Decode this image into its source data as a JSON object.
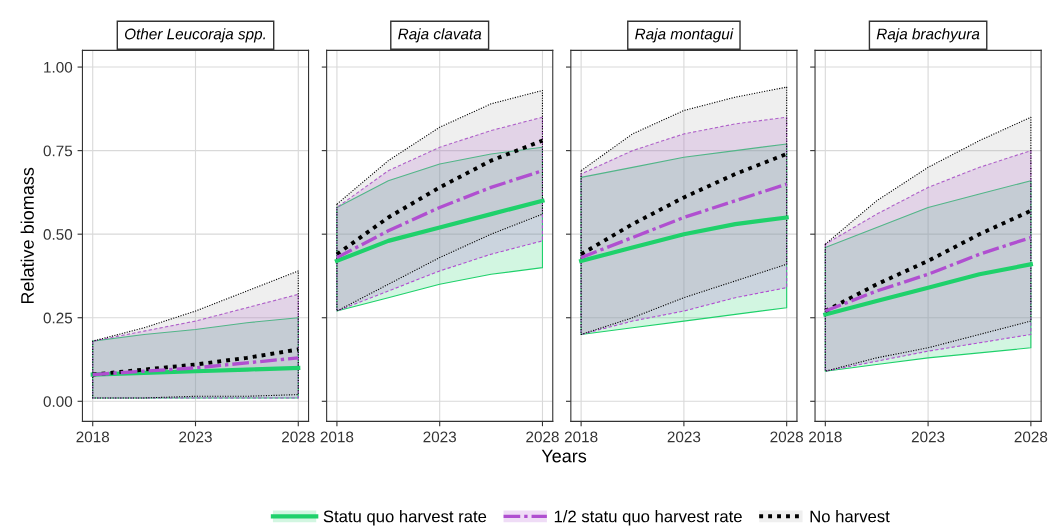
{
  "chart_data": [
    {
      "type": "line",
      "title": "Other Leucoraja spp.",
      "ylabel": "Relative biomass",
      "legend": "bottom",
      "grid": true,
      "marker": "none",
      "x": [
        2018,
        2020.5,
        2023,
        2025.5,
        2028
      ],
      "xlim": [
        2017.5,
        2028.5
      ],
      "xticks": [
        2018,
        2023,
        2028
      ],
      "ylim": [
        -0.06,
        1.05
      ],
      "yticks": [
        {
          "value": 0,
          "label": "0.00"
        },
        {
          "value": 0.25,
          "label": "0.25"
        },
        {
          "value": 0.5,
          "label": "0.50"
        },
        {
          "value": 0.75,
          "label": "0.75"
        },
        {
          "value": 1,
          "label": "1.00"
        }
      ],
      "series": [
        {
          "name": "Statu quo harvest rate",
          "color": "#1fd16b",
          "line_style": "solid",
          "values": [
            0.08,
            0.085,
            0.09,
            0.095,
            0.1
          ],
          "lower": [
            0.01,
            0.01,
            0.01,
            0.01,
            0.01
          ],
          "upper": [
            0.18,
            0.2,
            0.215,
            0.235,
            0.25
          ]
        },
        {
          "name": "1/2 statu quo harvest rate",
          "color": "#b04fd0",
          "line_style": "dashed",
          "values": [
            0.08,
            0.09,
            0.1,
            0.115,
            0.13
          ],
          "lower": [
            0.01,
            0.01,
            0.01,
            0.01,
            0.01
          ],
          "upper": [
            0.18,
            0.21,
            0.24,
            0.28,
            0.32
          ]
        },
        {
          "name": "No harvest",
          "color": "#000000",
          "line_style": "dotted",
          "values": [
            0.08,
            0.095,
            0.11,
            0.13,
            0.155
          ],
          "lower": [
            0.01,
            0.01,
            0.015,
            0.015,
            0.02
          ],
          "upper": [
            0.18,
            0.22,
            0.27,
            0.33,
            0.39
          ]
        }
      ]
    },
    {
      "type": "line",
      "title": "Raja clavata",
      "xlabel": "Years",
      "tick_labels": "x",
      "grid": true,
      "marker": "none",
      "x": [
        2018,
        2020.5,
        2023,
        2025.5,
        2028
      ],
      "xlim": [
        2017.5,
        2028.5
      ],
      "xticks": [
        2018,
        2023,
        2028
      ],
      "ylim": [
        -0.06,
        1.05
      ],
      "yticks": [
        0,
        0.25,
        0.5,
        0.75,
        1
      ],
      "series": [
        {
          "color": "#1fd16b",
          "line_style": "solid",
          "values": [
            0.42,
            0.48,
            0.52,
            0.56,
            0.6
          ],
          "lower": [
            0.27,
            0.31,
            0.35,
            0.38,
            0.4
          ],
          "upper": [
            0.58,
            0.66,
            0.71,
            0.74,
            0.76
          ]
        },
        {
          "color": "#b04fd0",
          "line_style": "dashed",
          "values": [
            0.43,
            0.51,
            0.58,
            0.64,
            0.69
          ],
          "lower": [
            0.27,
            0.33,
            0.39,
            0.44,
            0.48
          ],
          "upper": [
            0.58,
            0.69,
            0.76,
            0.81,
            0.85
          ]
        },
        {
          "color": "#000000",
          "line_style": "dotted",
          "values": [
            0.44,
            0.55,
            0.64,
            0.72,
            0.78
          ],
          "lower": [
            0.27,
            0.35,
            0.43,
            0.5,
            0.56
          ],
          "upper": [
            0.59,
            0.72,
            0.82,
            0.89,
            0.93
          ]
        }
      ]
    },
    {
      "type": "line",
      "title": "Raja montagui",
      "tick_labels": "x",
      "grid": true,
      "marker": "none",
      "x": [
        2018,
        2020.5,
        2023,
        2025.5,
        2028
      ],
      "xlim": [
        2017.5,
        2028.5
      ],
      "xticks": [
        2018,
        2023,
        2028
      ],
      "ylim": [
        -0.06,
        1.05
      ],
      "yticks": [
        0,
        0.25,
        0.5,
        0.75,
        1
      ],
      "series": [
        {
          "color": "#1fd16b",
          "line_style": "solid",
          "values": [
            0.42,
            0.46,
            0.5,
            0.53,
            0.55
          ],
          "lower": [
            0.2,
            0.22,
            0.24,
            0.26,
            0.28
          ],
          "upper": [
            0.67,
            0.7,
            0.73,
            0.75,
            0.77
          ]
        },
        {
          "color": "#b04fd0",
          "line_style": "dashed",
          "values": [
            0.43,
            0.49,
            0.55,
            0.6,
            0.65
          ],
          "lower": [
            0.2,
            0.24,
            0.27,
            0.31,
            0.34
          ],
          "upper": [
            0.68,
            0.75,
            0.8,
            0.83,
            0.85
          ]
        },
        {
          "color": "#000000",
          "line_style": "dotted",
          "values": [
            0.44,
            0.53,
            0.61,
            0.68,
            0.74
          ],
          "lower": [
            0.2,
            0.25,
            0.31,
            0.36,
            0.41
          ],
          "upper": [
            0.69,
            0.8,
            0.87,
            0.91,
            0.94
          ]
        }
      ]
    },
    {
      "type": "line",
      "title": "Raja brachyura",
      "tick_labels": "x",
      "grid": true,
      "marker": "none",
      "x": [
        2018,
        2020.5,
        2023,
        2025.5,
        2028
      ],
      "xlim": [
        2017.5,
        2028.5
      ],
      "xticks": [
        2018,
        2023,
        2028
      ],
      "ylim": [
        -0.06,
        1.05
      ],
      "yticks": [
        0,
        0.25,
        0.5,
        0.75,
        1
      ],
      "series": [
        {
          "color": "#1fd16b",
          "line_style": "solid",
          "values": [
            0.26,
            0.3,
            0.34,
            0.38,
            0.41
          ],
          "lower": [
            0.09,
            0.11,
            0.13,
            0.145,
            0.16
          ],
          "upper": [
            0.46,
            0.52,
            0.58,
            0.62,
            0.66
          ]
        },
        {
          "color": "#b04fd0",
          "line_style": "dashed",
          "values": [
            0.27,
            0.33,
            0.38,
            0.44,
            0.49
          ],
          "lower": [
            0.09,
            0.12,
            0.15,
            0.175,
            0.2
          ],
          "upper": [
            0.47,
            0.56,
            0.64,
            0.7,
            0.75
          ]
        },
        {
          "color": "#000000",
          "line_style": "dotted",
          "values": [
            0.27,
            0.35,
            0.42,
            0.5,
            0.57
          ],
          "lower": [
            0.09,
            0.13,
            0.16,
            0.2,
            0.24
          ],
          "upper": [
            0.47,
            0.6,
            0.7,
            0.78,
            0.85
          ]
        }
      ]
    }
  ]
}
